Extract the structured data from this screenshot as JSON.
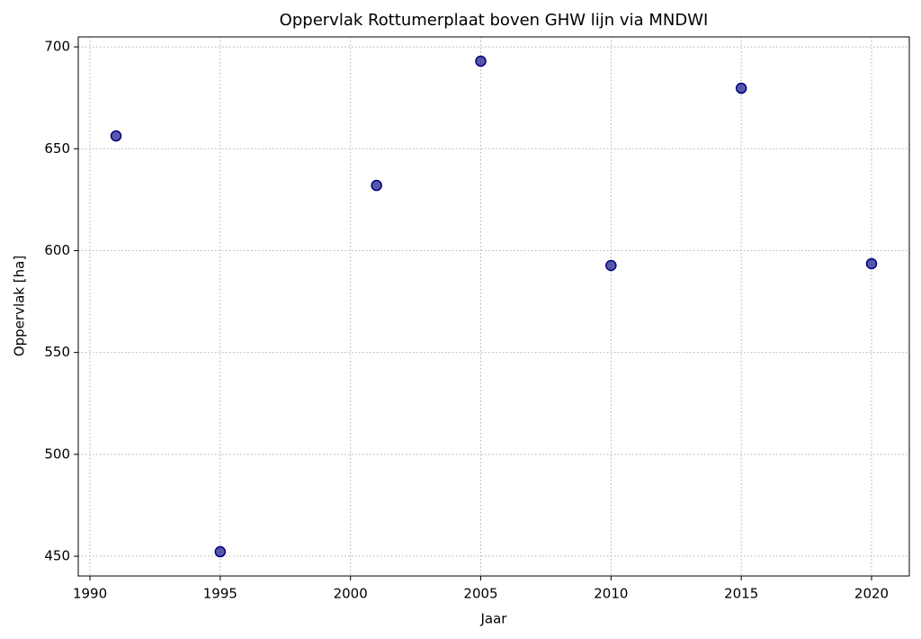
{
  "chart_data": {
    "type": "scatter",
    "title": "Oppervlak Rottumerplaat boven GHW lijn via MNDWI",
    "x_label": "Jaar",
    "y_label": "Oppervlak [ha]",
    "series": [
      {
        "color": "#000080",
        "x": [
          1991,
          1995,
          2001,
          2005,
          2010,
          2015,
          2020
        ],
        "values": [
          656.3,
          452.2,
          632,
          693,
          592.7,
          679.7,
          593.6
        ]
      }
    ],
    "xlim": [
      1989.55,
      2021.45
    ],
    "xticks": [
      1990,
      1995,
      2000,
      2005,
      2010,
      2015,
      2020
    ],
    "ylim": [
      440.3,
      704.9
    ],
    "yticks": [
      450,
      500,
      550,
      600,
      650,
      700
    ],
    "grid": true
  }
}
